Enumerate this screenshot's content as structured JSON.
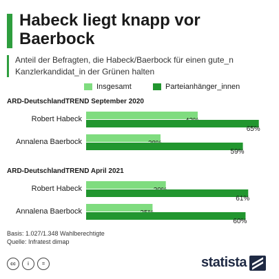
{
  "header": {
    "title": "Habeck liegt knapp vor Baerbock",
    "subtitle": "Anteil der Befragten, die Habeck/Baerbock für einen gute_n Kanzlerkandidat_in der Grünen halten"
  },
  "colors": {
    "accent": "#2e9e3e",
    "series_light": "#7fdc7f",
    "series_dark": "#22962f"
  },
  "chart_data": {
    "type": "bar",
    "orientation": "horizontal",
    "legend": "top",
    "grid": false,
    "xlim": [
      0,
      100
    ],
    "series": [
      {
        "name": "Insgesamt",
        "color": "#7fdc7f"
      },
      {
        "name": "Parteianhänger_innen",
        "color": "#22962f"
      }
    ],
    "groups": [
      {
        "label": "ARD-DeutschlandTREND September 2020",
        "rows": [
          {
            "category": "Robert Habeck",
            "values": [
              42,
              65
            ],
            "labels": [
              "42%",
              "65%"
            ]
          },
          {
            "category": "Annalena Baerbock",
            "values": [
              28,
              59
            ],
            "labels": [
              "28%",
              "59%"
            ]
          }
        ]
      },
      {
        "label": "ARD-DeutschlandTREND April 2021",
        "rows": [
          {
            "category": "Robert Habeck",
            "values": [
              30,
              61
            ],
            "labels": [
              "30%",
              "61%"
            ]
          },
          {
            "category": "Annalena Baerbock",
            "values": [
              25,
              60
            ],
            "labels": [
              "25%",
              "60%"
            ]
          }
        ]
      }
    ]
  },
  "source": {
    "basis": "Basis: 1.027/1.348 Wahlberechtigte",
    "quelle": "Quelle: Infratest dimap"
  },
  "footer": {
    "license_icons": [
      "cc-icon",
      "by-icon",
      "nd-icon"
    ],
    "license_glyphs": [
      "cc",
      "i",
      "="
    ],
    "logo_text": "statista"
  }
}
